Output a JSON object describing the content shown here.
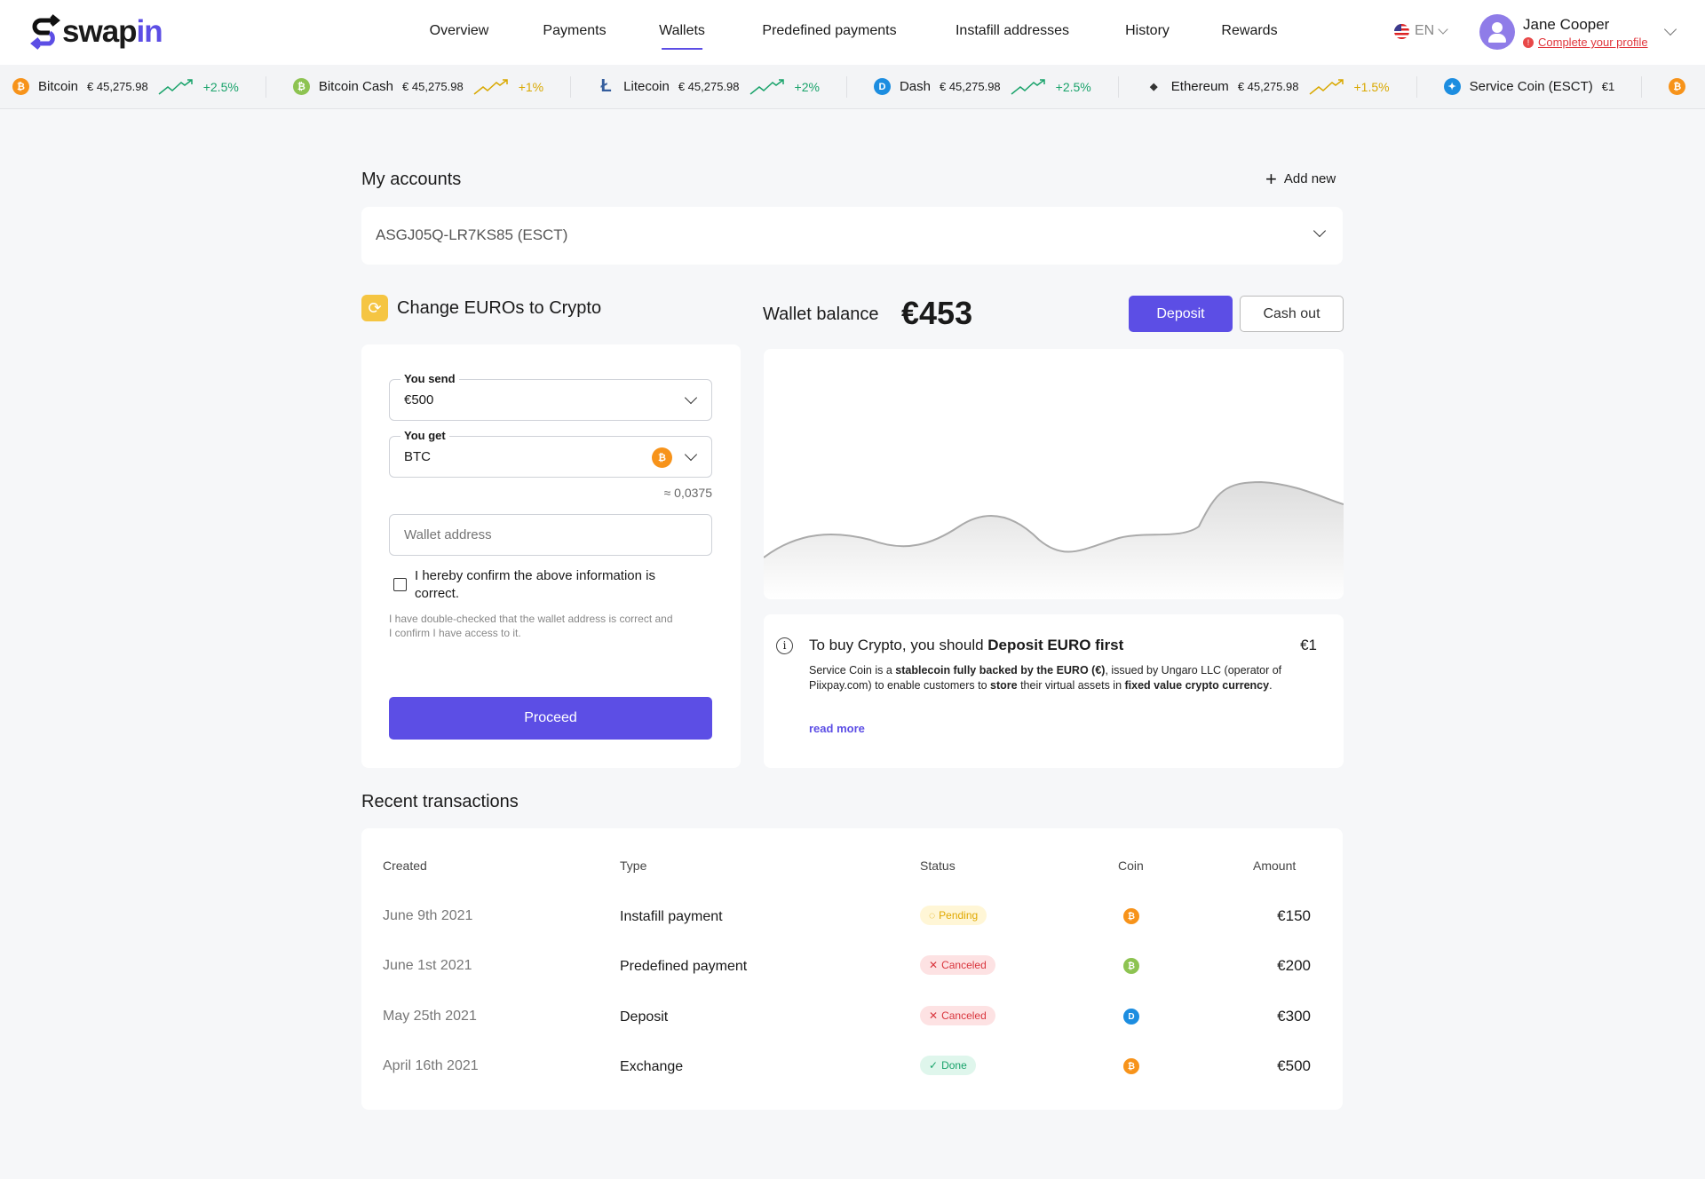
{
  "brand": {
    "name_a": "swap",
    "name_b": "in"
  },
  "nav": [
    {
      "label": "Overview"
    },
    {
      "label": "Payments"
    },
    {
      "label": "Wallets",
      "active": true
    },
    {
      "label": "Predefined payments"
    },
    {
      "label": "Instafill addresses"
    },
    {
      "label": "History"
    },
    {
      "label": "Rewards"
    }
  ],
  "lang": "EN",
  "user": {
    "name": "Jane Cooper",
    "alert": "Complete your profile"
  },
  "ticker": [
    {
      "name": "Bitcoin",
      "price": "€ 45,275.98",
      "change": "+2.5%",
      "trend_color": "#1aa36b",
      "icon": "bitcoin-icon",
      "color": "#f7931a",
      "glyph": "₿"
    },
    {
      "name": "Bitcoin Cash",
      "price": "€ 45,275.98",
      "change": "+1%",
      "trend_color": "#d9a800",
      "icon": "bitcoin-cash-icon",
      "color": "#8dc351",
      "glyph": "₿"
    },
    {
      "name": "Litecoin",
      "price": "€ 45,275.98",
      "change": "+2%",
      "trend_color": "#1aa36b",
      "icon": "litecoin-icon",
      "color": "#345d9d",
      "glyph": "Ł"
    },
    {
      "name": "Dash",
      "price": "€ 45,275.98",
      "change": "+2.5%",
      "trend_color": "#1aa36b",
      "icon": "dash-icon",
      "color": "#1c8de0",
      "glyph": "D"
    },
    {
      "name": "Ethereum",
      "price": "€ 45,275.98",
      "change": "+1.5%",
      "trend_color": "#d9a800",
      "icon": "ethereum-icon",
      "color": "#333333",
      "glyph": "◆"
    },
    {
      "name": "Service Coin (ESCT)",
      "price": "€1",
      "change": "",
      "trend_color": "",
      "icon": "service-coin-icon",
      "color": "#1c8de0",
      "glyph": "✦"
    }
  ],
  "accounts": {
    "title": "My accounts",
    "add_new": "Add new",
    "selected": "ASGJ05Q-LR7KS85 (ESCT)"
  },
  "exchange": {
    "title": "Change EUROs to Crypto",
    "send_label": "You send",
    "send_value": "€500",
    "get_label": "You get",
    "get_value": "BTC",
    "estimate": "≈ 0,0375",
    "wallet_placeholder": "Wallet address",
    "confirm": "I hereby confirm the above information is correct.",
    "note": "I have double-checked that the wallet address is correct and I confirm I have access to it.",
    "proceed": "Proceed"
  },
  "wallet": {
    "label": "Wallet balance",
    "balance": "€453",
    "deposit": "Deposit",
    "cash_out": "Cash out"
  },
  "info": {
    "title_a": "To buy Crypto, you should ",
    "title_b": "Deposit EURO first",
    "value": "€1",
    "t1": "Service Coin is a ",
    "b1": "stablecoin fully backed by the EURO (€)",
    "t2": ", issued by Ungaro LLC (operator of Piixpay.com) to enable customers to ",
    "b2": "store",
    "t3": " their virtual assets in ",
    "b3": "fixed value crypto currency",
    "t4": ".",
    "read_more": "read more"
  },
  "transactions": {
    "title": "Recent transactions",
    "headers": [
      "Created",
      "Type",
      "Status",
      "Coin",
      "Amount"
    ],
    "rows": [
      {
        "created": "June 9th 2021",
        "type": "Instafill payment",
        "status": "Pending",
        "coin": "bitcoin",
        "amount": "€150"
      },
      {
        "created": "June 1st 2021",
        "type": "Predefined payment",
        "status": "Canceled",
        "coin": "bitcoin-cash",
        "amount": "€200"
      },
      {
        "created": "May 25th 2021",
        "type": "Deposit",
        "status": "Canceled",
        "coin": "dash",
        "amount": "€300"
      },
      {
        "created": "April 16th 2021",
        "type": "Exchange",
        "status": "Done",
        "coin": "bitcoin",
        "amount": "€500"
      }
    ]
  },
  "colors": {
    "accent": "#5c4ee5",
    "pending": "#f5b800",
    "canceled": "#e0353b",
    "done": "#1aa36b"
  }
}
